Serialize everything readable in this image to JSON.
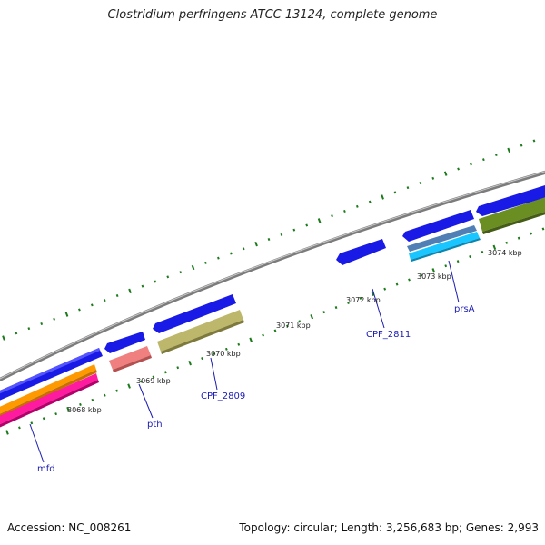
{
  "title": "Clostridium perfringens ATCC 13124, complete genome",
  "footer": {
    "accession": "Accession: NC_008261",
    "summary": "Topology: circular; Length: 3,256,683 bp; Genes: 2,993"
  },
  "colors": {
    "backbone": "#8a8a8a",
    "cds_forward": "#1010dd",
    "tick": "#1b7a1b",
    "label": "#1c1cb4"
  },
  "tick_labels": [
    "3068 kbp",
    "3069 kbp",
    "3070 kbp",
    "3071 kbp",
    "3072 kbp",
    "3073 kbp",
    "3074 kbp"
  ],
  "gene_labels": [
    "mfd",
    "pth",
    "CPF_2809",
    "CPF_2811",
    "prsA"
  ]
}
